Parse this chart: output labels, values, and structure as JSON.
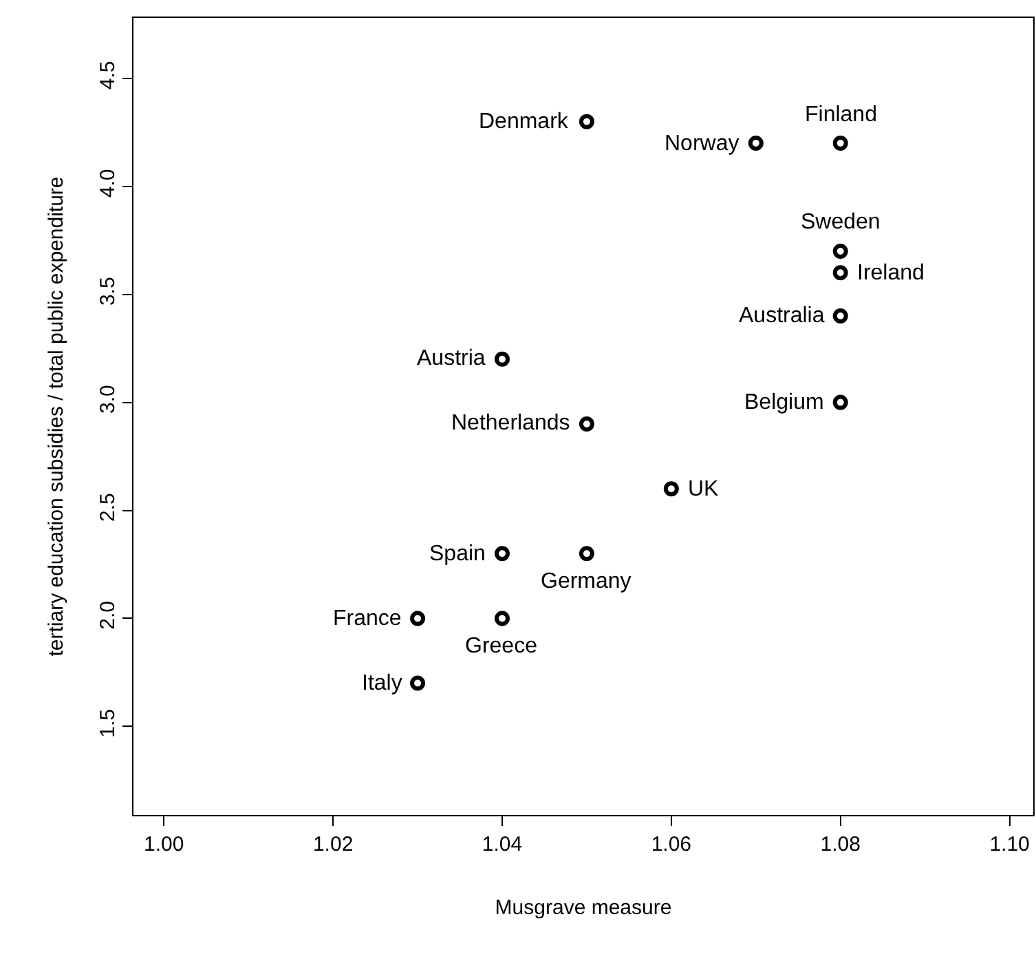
{
  "chart_data": {
    "type": "scatter",
    "xlabel": "Musgrave measure",
    "ylabel": "tertiary education subsidies / total public expenditure",
    "x": [
      1.05,
      1.07,
      1.08,
      1.08,
      1.08,
      1.08,
      1.04,
      1.08,
      1.05,
      1.06,
      1.04,
      1.05,
      1.03,
      1.04,
      1.03
    ],
    "series": [
      {
        "color": "#000000",
        "values": [
          4.3,
          4.2,
          4.2,
          3.7,
          3.6,
          3.4,
          3.2,
          3.0,
          2.9,
          2.6,
          2.3,
          2.3,
          2.0,
          2.0,
          1.7
        ]
      }
    ],
    "annotations": [
      {
        "text": "Denmark",
        "x": 1.05,
        "y": 4.3
      },
      {
        "text": "Norway",
        "x": 1.07,
        "y": 4.2
      },
      {
        "text": "Finland",
        "x": 1.08,
        "y": 4.2
      },
      {
        "text": "Sweden",
        "x": 1.08,
        "y": 3.7
      },
      {
        "text": "Ireland",
        "x": 1.08,
        "y": 3.6
      },
      {
        "text": "Australia",
        "x": 1.08,
        "y": 3.4
      },
      {
        "text": "Austria",
        "x": 1.04,
        "y": 3.2
      },
      {
        "text": "Belgium",
        "x": 1.08,
        "y": 3.0
      },
      {
        "text": "Netherlands",
        "x": 1.05,
        "y": 2.9
      },
      {
        "text": "UK",
        "x": 1.06,
        "y": 2.6
      },
      {
        "text": "Spain",
        "x": 1.04,
        "y": 2.3
      },
      {
        "text": "Germany",
        "x": 1.05,
        "y": 2.3
      },
      {
        "text": "France",
        "x": 1.03,
        "y": 2.0
      },
      {
        "text": "Greece",
        "x": 1.04,
        "y": 2.0
      },
      {
        "text": "Italy",
        "x": 1.03,
        "y": 1.7
      }
    ],
    "xlim": [
      0.9964,
      1.1028
    ],
    "xticks": [
      {
        "value": 1.0,
        "label": "1.00"
      },
      1.02,
      1.04,
      1.06,
      1.08,
      {
        "value": 1.1,
        "label": "1.10"
      }
    ],
    "ylim": [
      1.09,
      4.78
    ],
    "yticks": [
      1.5,
      {
        "value": 2,
        "label": "2.0"
      },
      2.5,
      {
        "value": 3,
        "label": "3.0"
      },
      3.5,
      {
        "value": 4,
        "label": "4.0"
      },
      4.5
    ],
    "marker": "circle"
  }
}
